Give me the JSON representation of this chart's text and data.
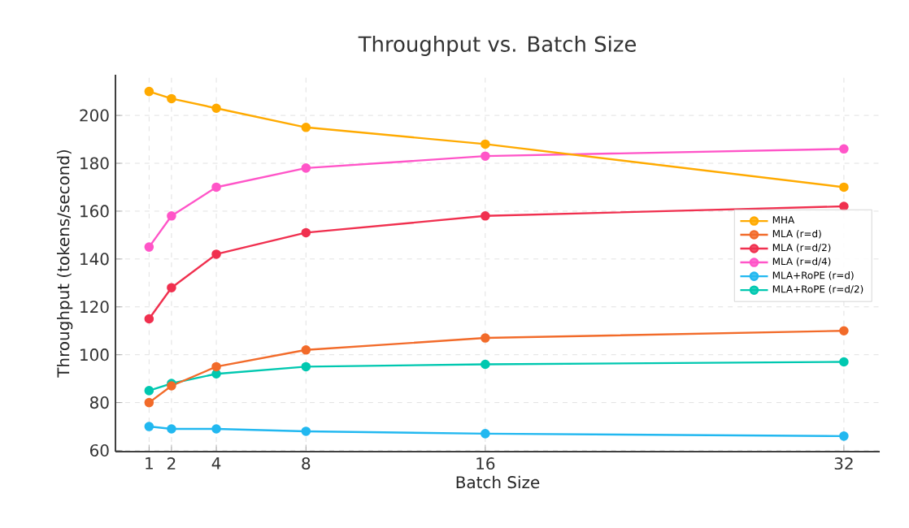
{
  "chart_data": {
    "type": "line",
    "title": "Throughput vs. Batch Size",
    "xlabel": "Batch Size",
    "ylabel": "Throughput (tokens/second)",
    "x": [
      1,
      2,
      4,
      8,
      16,
      32
    ],
    "series": [
      {
        "name": "MHA",
        "color": "#ffaa00",
        "values": [
          210,
          207,
          203,
          195,
          188,
          170
        ]
      },
      {
        "name": "MLA (r=d)",
        "color": "#f26b2a",
        "values": [
          80,
          87,
          95,
          102,
          107,
          110
        ]
      },
      {
        "name": "MLA (r=d/2)",
        "color": "#f0304f",
        "values": [
          115,
          128,
          142,
          151,
          158,
          162
        ]
      },
      {
        "name": "MLA (r=d/4)",
        "color": "#ff55c8",
        "values": [
          145,
          158,
          170,
          178,
          183,
          186
        ]
      },
      {
        "name": "MLA+RoPE (r=d)",
        "color": "#22b8f0",
        "values": [
          70,
          69,
          69,
          68,
          67,
          66
        ]
      },
      {
        "name": "MLA+RoPE (r=d/2)",
        "color": "#00c8b0",
        "values": [
          85,
          88,
          92,
          95,
          96,
          97
        ]
      }
    ],
    "xlim": [
      -0.5,
      33.6
    ],
    "ylim": [
      59.5,
      217
    ],
    "xticks": [
      1,
      2,
      4,
      8,
      16,
      32
    ],
    "yticks": [
      60,
      80,
      100,
      120,
      140,
      160,
      180,
      200
    ],
    "grid": true,
    "legend": "right",
    "marker": "circle",
    "line_style": "solid"
  }
}
